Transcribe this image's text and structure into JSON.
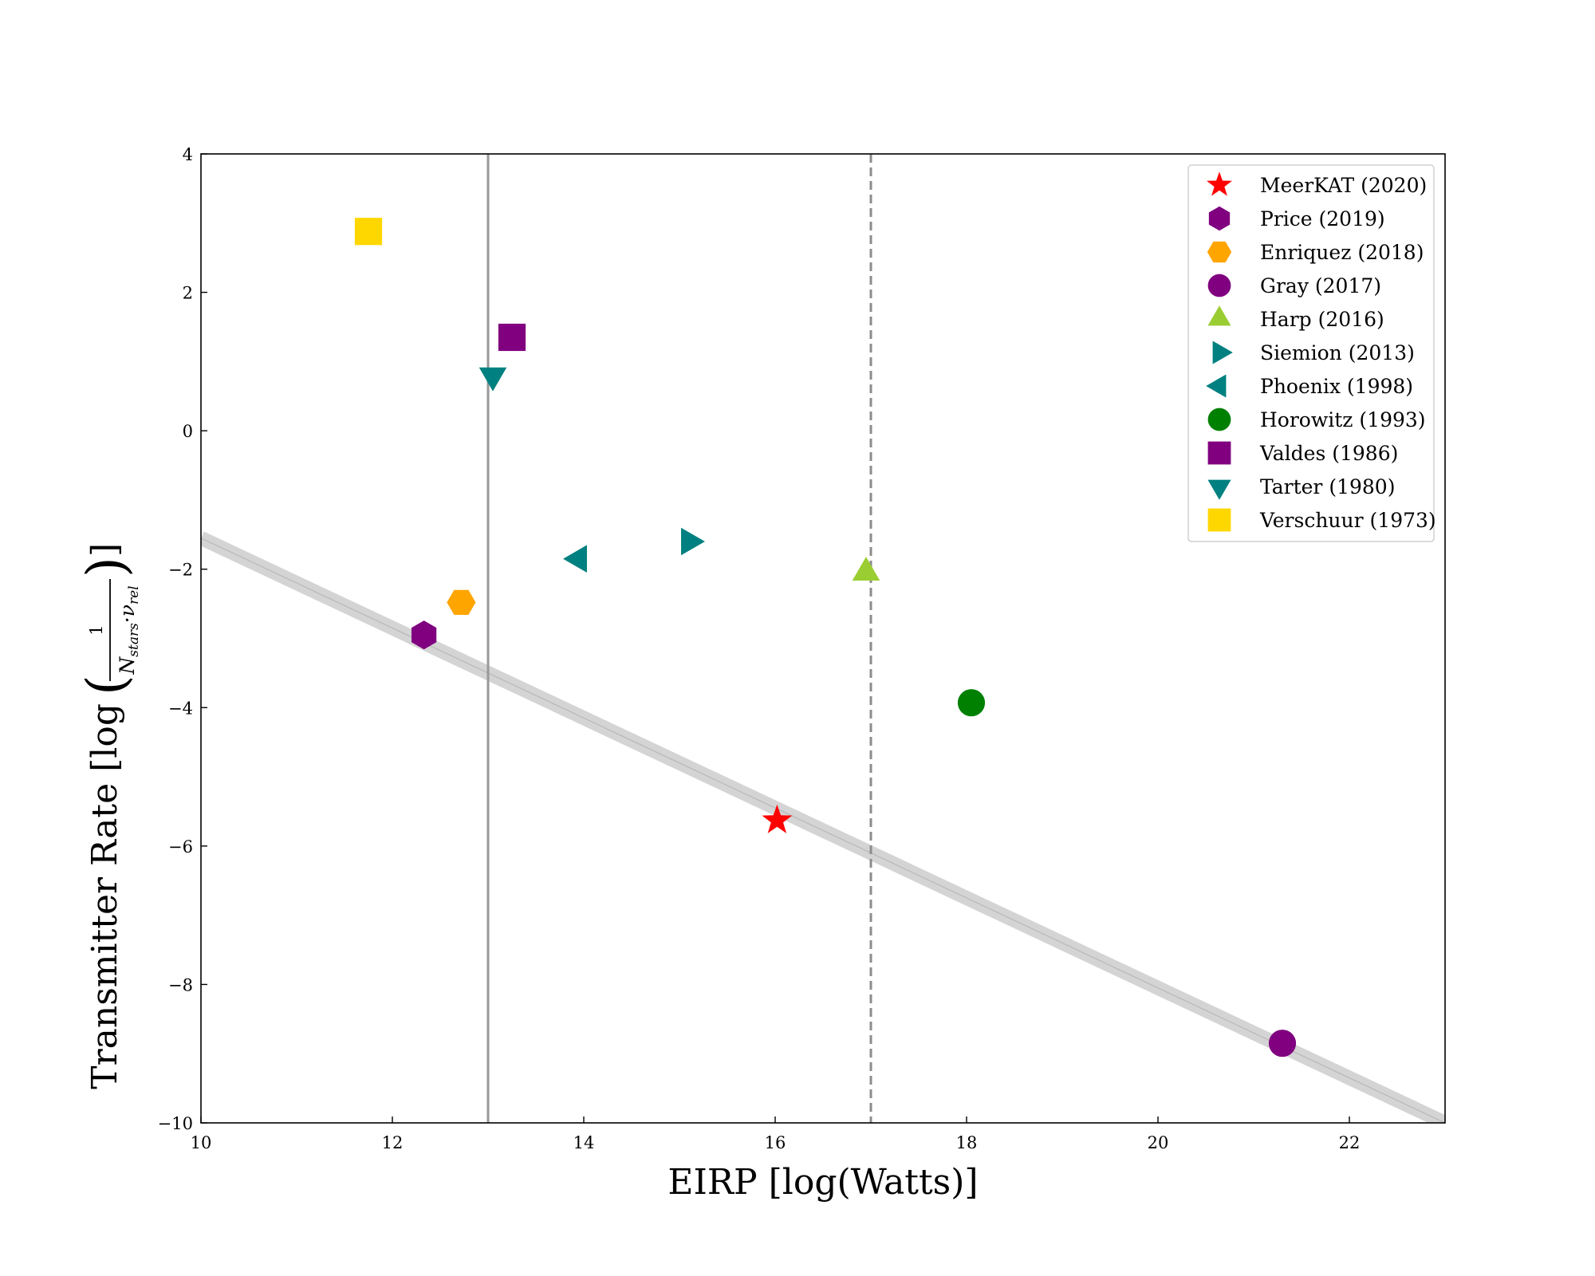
{
  "chart_data": {
    "type": "scatter",
    "title": "",
    "xlabel": "EIRP [log(Watts)]",
    "ylabel": {
      "prefix": "Transmitter Rate [log",
      "numerator": "1",
      "denominator": "N",
      "denominator_sub": "stars",
      "denominator_mid": "·ν",
      "denominator_sub2": "rel",
      "suffix": "]"
    },
    "xlim": [
      10,
      23
    ],
    "ylim": [
      -10,
      4
    ],
    "xticks": [
      10,
      12,
      14,
      16,
      18,
      20,
      22
    ],
    "yticks": [
      -10,
      -8,
      -6,
      -4,
      -2,
      0,
      2,
      4
    ],
    "grid": false,
    "legend_position": "top-right",
    "reference_lines": [
      {
        "kind": "vertical",
        "x": 13,
        "style": "solid",
        "color": "#999999"
      },
      {
        "kind": "vertical",
        "x": 17,
        "style": "dashed",
        "color": "#8c8c8c"
      }
    ],
    "trend_band": {
      "color": "#cccccc",
      "points": [
        [
          10,
          -1.55
        ],
        [
          23,
          -10.0
        ]
      ]
    },
    "series": [
      {
        "name": "MeerKAT (2020)",
        "marker": "star",
        "color": "#ff0000",
        "points": [
          [
            16.02,
            -5.63
          ]
        ]
      },
      {
        "name": "Price (2019)",
        "marker": "hexagon",
        "color": "#800080",
        "points": [
          [
            12.33,
            -2.95
          ]
        ]
      },
      {
        "name": "Enriquez (2018)",
        "marker": "hexagon2",
        "color": "#ffa500",
        "points": [
          [
            12.72,
            -2.48
          ]
        ]
      },
      {
        "name": "Gray (2017)",
        "marker": "circle",
        "color": "#800080",
        "points": [
          [
            21.3,
            -8.85
          ]
        ]
      },
      {
        "name": "Harp (2016)",
        "marker": "triangle-up",
        "color": "#9acd32",
        "points": [
          [
            16.95,
            -2.05
          ]
        ]
      },
      {
        "name": "Siemion (2013)",
        "marker": "triangle-right",
        "color": "#008080",
        "points": [
          [
            15.1,
            -1.6
          ]
        ]
      },
      {
        "name": "Phoenix (1998)",
        "marker": "triangle-left",
        "color": "#008080",
        "points": [
          [
            13.95,
            -1.85
          ]
        ]
      },
      {
        "name": "Horowitz (1993)",
        "marker": "circle",
        "color": "#008000",
        "points": [
          [
            18.05,
            -3.93
          ]
        ]
      },
      {
        "name": "Valdes (1986)",
        "marker": "square",
        "color": "#800080",
        "points": [
          [
            13.25,
            1.35
          ]
        ]
      },
      {
        "name": "Tarter (1980)",
        "marker": "triangle-down",
        "color": "#008080",
        "points": [
          [
            13.05,
            0.8
          ]
        ]
      },
      {
        "name": "Verschuur (1973)",
        "marker": "square",
        "color": "#ffd700",
        "points": [
          [
            11.75,
            2.88
          ]
        ]
      }
    ]
  }
}
